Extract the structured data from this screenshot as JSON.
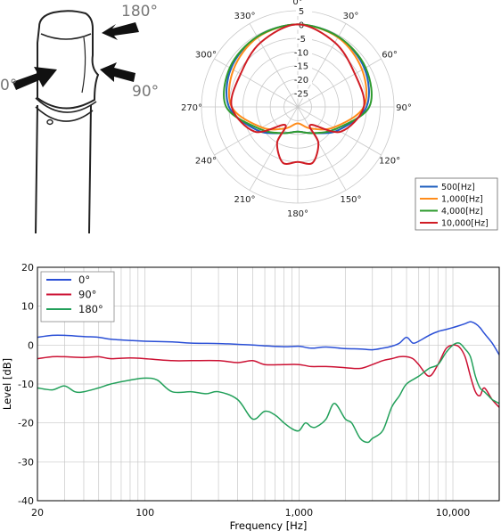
{
  "illustration": {
    "labels": [
      "180°",
      "0°",
      "90°"
    ]
  },
  "colors": {
    "c500": "#1f5fbf",
    "c1000": "#ff8c1a",
    "c4000": "#2e9b2e",
    "c10000": "#d01c24",
    "fr0": "#2a4fd6",
    "fr90": "#cc1133",
    "fr180": "#22a05a",
    "grid": "#c8c8c8",
    "axis": "#000000"
  },
  "chart_data": [
    {
      "type": "polar",
      "angular_ticks": [
        "0°",
        "30°",
        "60°",
        "90°",
        "120°",
        "150°",
        "180°",
        "210°",
        "240°",
        "270°",
        "300°",
        "330°"
      ],
      "radial_ticks": [
        "5",
        "0",
        "-5",
        "-10",
        "-15",
        "-20",
        "-25"
      ],
      "radial_range": [
        -30,
        5
      ],
      "legend": {
        "placement": "bottom-right",
        "entries": [
          "500[Hz]",
          "1,000[Hz]",
          "4,000[Hz]",
          "10,000[Hz]"
        ]
      },
      "series": [
        {
          "name": "500[Hz]",
          "color_key": "c500",
          "angles_deg": [
            0,
            30,
            60,
            90,
            120,
            150,
            180,
            210,
            240,
            270,
            300,
            330
          ],
          "values_db": [
            0,
            -0.5,
            -2,
            -5,
            -13,
            -19,
            -21,
            -19,
            -13,
            -5,
            -2,
            -0.5
          ]
        },
        {
          "name": "1,000[Hz]",
          "color_key": "c1000",
          "angles_deg": [
            0,
            30,
            60,
            90,
            120,
            150,
            180,
            210,
            240,
            270,
            300,
            330
          ],
          "values_db": [
            0,
            -0.8,
            -3,
            -6,
            -15,
            -21,
            -24,
            -21,
            -15,
            -6,
            -3,
            -0.8
          ]
        },
        {
          "name": "4,000[Hz]",
          "color_key": "c4000",
          "angles_deg": [
            0,
            30,
            60,
            90,
            120,
            150,
            180,
            210,
            240,
            270,
            300,
            330
          ],
          "values_db": [
            0,
            -0.5,
            -1.5,
            -4,
            -14,
            -19,
            -21,
            -19,
            -14,
            -4,
            -1.5,
            -0.5
          ]
        },
        {
          "name": "10,000[Hz]",
          "color_key": "c10000",
          "angles_deg": [
            0,
            30,
            60,
            90,
            120,
            145,
            150,
            165,
            180,
            195,
            210,
            215,
            240,
            270,
            300,
            330
          ],
          "values_db": [
            0,
            -3,
            -6,
            -6,
            -12,
            -22,
            -15,
            -9,
            -10,
            -9,
            -15,
            -22,
            -12,
            -6,
            -6,
            -3
          ]
        }
      ]
    },
    {
      "type": "line",
      "xscale": "log",
      "xlim": [
        20,
        20000
      ],
      "ylim": [
        -40,
        20
      ],
      "xlabel": "Frequency [Hz]",
      "ylabel": "Level [dB]",
      "x_tick_labels": {
        "20": "20",
        "100": "100",
        "1000": "1,000",
        "10000": "10,000"
      },
      "y_ticks": [
        20,
        10,
        0,
        -10,
        -20,
        -30,
        -40
      ],
      "grid": true,
      "legend": {
        "placement": "top-left",
        "entries": [
          "0°",
          "90°",
          "180°"
        ]
      },
      "series": [
        {
          "name": "0°",
          "color_key": "fr0",
          "x": [
            20,
            25,
            30,
            40,
            50,
            60,
            80,
            100,
            150,
            200,
            300,
            400,
            500,
            600,
            800,
            1000,
            1200,
            1500,
            2000,
            2500,
            3000,
            3500,
            4000,
            4500,
            5000,
            5500,
            6000,
            7000,
            8000,
            9000,
            10000,
            11000,
            12000,
            13000,
            14000,
            15000,
            16000,
            18000,
            20000
          ],
          "y": [
            2,
            2.5,
            2.5,
            2.2,
            2,
            1.5,
            1.2,
            1,
            0.8,
            0.5,
            0.4,
            0.2,
            0,
            -0.2,
            -0.4,
            -0.3,
            -0.8,
            -0.5,
            -0.9,
            -1,
            -1.2,
            -0.8,
            -0.3,
            0.5,
            2,
            0.5,
            1,
            2.5,
            3.5,
            4,
            4.5,
            5,
            5.5,
            6,
            5.5,
            4.5,
            3,
            0.5,
            -2.5
          ]
        },
        {
          "name": "90°",
          "color_key": "fr90",
          "x": [
            20,
            25,
            30,
            40,
            50,
            60,
            80,
            100,
            150,
            200,
            300,
            400,
            500,
            600,
            800,
            1000,
            1200,
            1500,
            2000,
            2500,
            3000,
            3500,
            4000,
            4500,
            5000,
            5500,
            6000,
            7000,
            8000,
            9000,
            10000,
            11000,
            12000,
            13000,
            14000,
            15000,
            16000,
            18000,
            20000
          ],
          "y": [
            -3.5,
            -3,
            -3,
            -3.2,
            -3,
            -3.5,
            -3.3,
            -3.5,
            -4,
            -4,
            -4,
            -4.5,
            -4,
            -5,
            -5,
            -5,
            -5.5,
            -5.5,
            -5.8,
            -6,
            -5,
            -4,
            -3.5,
            -3,
            -3,
            -3.5,
            -5,
            -8,
            -5,
            -1,
            0,
            -0.5,
            -3,
            -8,
            -12,
            -13,
            -11,
            -14,
            -16
          ]
        },
        {
          "name": "180°",
          "color_key": "fr180",
          "x": [
            20,
            25,
            30,
            35,
            40,
            50,
            60,
            80,
            100,
            120,
            150,
            200,
            250,
            300,
            400,
            500,
            600,
            700,
            800,
            900,
            1000,
            1100,
            1200,
            1300,
            1500,
            1700,
            2000,
            2200,
            2500,
            2800,
            3000,
            3500,
            4000,
            4500,
            5000,
            6000,
            7000,
            8000,
            9000,
            10000,
            11000,
            12000,
            13000,
            14000,
            15000,
            16000,
            17000,
            18000,
            20000
          ],
          "y": [
            -11,
            -11.5,
            -10.5,
            -12,
            -12,
            -11,
            -10,
            -9,
            -8.5,
            -9,
            -12,
            -12,
            -12.5,
            -12,
            -14,
            -19,
            -17,
            -18,
            -20,
            -21.5,
            -22,
            -20,
            -21,
            -21,
            -19,
            -15,
            -19,
            -20,
            -24,
            -25,
            -24,
            -22,
            -16,
            -13,
            -10,
            -8,
            -6,
            -5,
            -2,
            0,
            0.5,
            -1,
            -3,
            -8,
            -11,
            -12,
            -13,
            -14,
            -15
          ]
        }
      ]
    }
  ]
}
